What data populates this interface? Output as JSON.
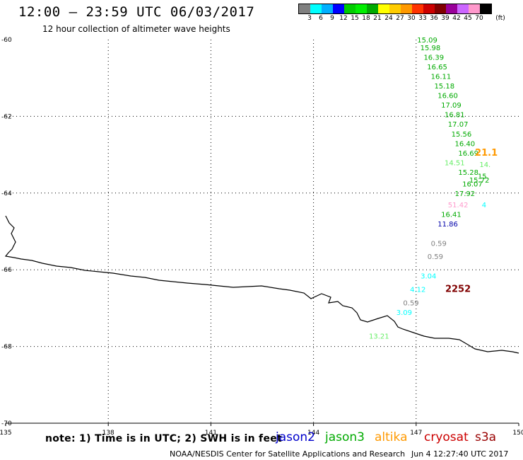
{
  "header": {
    "title": "12:00 – 23:59 UTC 06/03/2017",
    "subtitle": "12 hour collection of altimeter wave heights"
  },
  "legend": {
    "colors": [
      "#808080",
      "#00ffff",
      "#00b0ff",
      "#0000ff",
      "#00cc00",
      "#00ee00",
      "#00aa00",
      "#ffff00",
      "#ffcc00",
      "#ff9900",
      "#ff3300",
      "#cc0000",
      "#800000",
      "#990099",
      "#cc66ff",
      "#ff99cc",
      "#000000"
    ],
    "labels": [
      "3",
      "6",
      "9",
      "12",
      "15",
      "18",
      "21",
      "24",
      "27",
      "30",
      "33",
      "36",
      "39",
      "42",
      "45",
      "70",
      "(ft)"
    ]
  },
  "axes": {
    "lat_labels": [
      "-60",
      "-62",
      "-64",
      "-66",
      "-68",
      "-70"
    ],
    "lon_labels": [
      "135",
      "138",
      "141",
      "144",
      "147",
      "150"
    ]
  },
  "wave_labels": [
    {
      "v": "15.09",
      "c": "#00aa00",
      "lon": 147.03,
      "lat": -60.0
    },
    {
      "v": "15.98",
      "c": "#00aa00",
      "lon": 147.12,
      "lat": -60.2
    },
    {
      "v": "16.39",
      "c": "#00aa00",
      "lon": 147.22,
      "lat": -60.45
    },
    {
      "v": "16.65",
      "c": "#00aa00",
      "lon": 147.32,
      "lat": -60.7
    },
    {
      "v": "16.11",
      "c": "#00aa00",
      "lon": 147.43,
      "lat": -60.95
    },
    {
      "v": "15.18",
      "c": "#00aa00",
      "lon": 147.53,
      "lat": -61.2
    },
    {
      "v": "16.60",
      "c": "#00aa00",
      "lon": 147.63,
      "lat": -61.45
    },
    {
      "v": "17.09",
      "c": "#00aa00",
      "lon": 147.73,
      "lat": -61.7
    },
    {
      "v": "16.81",
      "c": "#00aa00",
      "lon": 147.83,
      "lat": -61.95
    },
    {
      "v": "17.07",
      "c": "#00aa00",
      "lon": 147.93,
      "lat": -62.2
    },
    {
      "v": "15.56",
      "c": "#00aa00",
      "lon": 148.03,
      "lat": -62.45
    },
    {
      "v": "16.40",
      "c": "#00aa00",
      "lon": 148.13,
      "lat": -62.7
    },
    {
      "v": "16.69",
      "c": "#00aa00",
      "lon": 148.23,
      "lat": -62.95
    },
    {
      "v": "21.1",
      "c": "#ff9900",
      "lon": 148.72,
      "lat": -62.95
    },
    {
      "v": "14.51",
      "c": "#66ee66",
      "lon": 147.83,
      "lat": -63.2
    },
    {
      "v": "14.",
      "c": "#66ee66",
      "lon": 148.85,
      "lat": -63.25
    },
    {
      "v": "15.28",
      "c": "#00aa00",
      "lon": 148.23,
      "lat": -63.45
    },
    {
      "v": "15.",
      "c": "#00aa00",
      "lon": 148.8,
      "lat": -63.55
    },
    {
      "v": "15.72",
      "c": "#00aa00",
      "lon": 148.55,
      "lat": -63.65
    },
    {
      "v": "16.07",
      "c": "#00aa00",
      "lon": 148.35,
      "lat": -63.75
    },
    {
      "v": "17.92",
      "c": "#00aa00",
      "lon": 148.13,
      "lat": -64.0
    },
    {
      "v": "51.42",
      "c": "#ff99cc",
      "lon": 147.93,
      "lat": -64.3
    },
    {
      "v": "4",
      "c": "#00ffff",
      "lon": 148.92,
      "lat": -64.3
    },
    {
      "v": "16.41",
      "c": "#00aa00",
      "lon": 147.73,
      "lat": -64.55
    },
    {
      "v": "11.86",
      "c": "#0000aa",
      "lon": 147.63,
      "lat": -64.8
    },
    {
      "v": "0.59",
      "c": "#808080",
      "lon": 147.43,
      "lat": -65.3
    },
    {
      "v": "0.59",
      "c": "#808080",
      "lon": 147.33,
      "lat": -65.65
    },
    {
      "v": "3.04",
      "c": "#00ffff",
      "lon": 147.13,
      "lat": -66.15
    },
    {
      "v": "2252",
      "c": "#800000",
      "lon": 147.85,
      "lat": -66.5
    },
    {
      "v": "4.12",
      "c": "#00ffff",
      "lon": 146.82,
      "lat": -66.5
    },
    {
      "v": "0.59",
      "c": "#808080",
      "lon": 146.62,
      "lat": -66.85
    },
    {
      "v": "3.09",
      "c": "#00ffff",
      "lon": 146.42,
      "lat": -67.1
    },
    {
      "v": "13.21",
      "c": "#66ee66",
      "lon": 145.62,
      "lat": -67.72
    }
  ],
  "footer": {
    "note": "note: 1) Time is in UTC; 2) SWH is in feet",
    "satellites": [
      {
        "name": "jason2",
        "color": "#0000cc"
      },
      {
        "name": "jason3",
        "color": "#00aa00"
      },
      {
        "name": "altika",
        "color": "#ff9900"
      },
      {
        "name": "cryosat",
        "color": "#cc0000"
      },
      {
        "name": "s3a",
        "color": "#990000"
      }
    ],
    "credit": "NOAA/NESDIS Center for Satellite Applications and Research",
    "timestamp": "Jun  4 12:27:40 UTC 2017"
  }
}
